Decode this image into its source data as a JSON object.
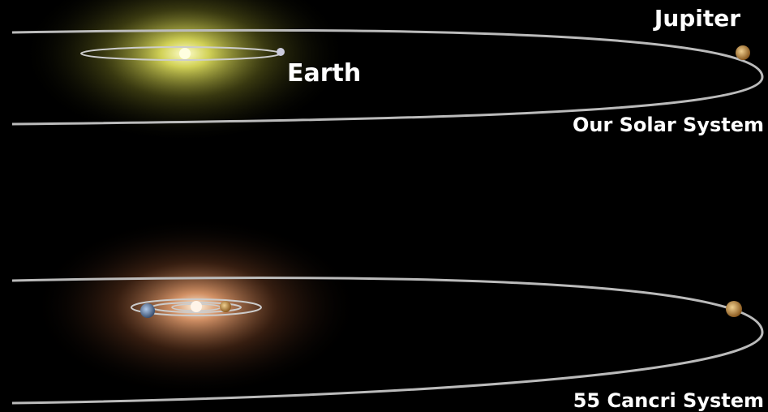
{
  "top": {
    "labels": [
      "Jupiter",
      "Earth"
    ],
    "caption": "Our Solar System"
  },
  "bottom": {
    "caption": "55 Cancri System"
  }
}
